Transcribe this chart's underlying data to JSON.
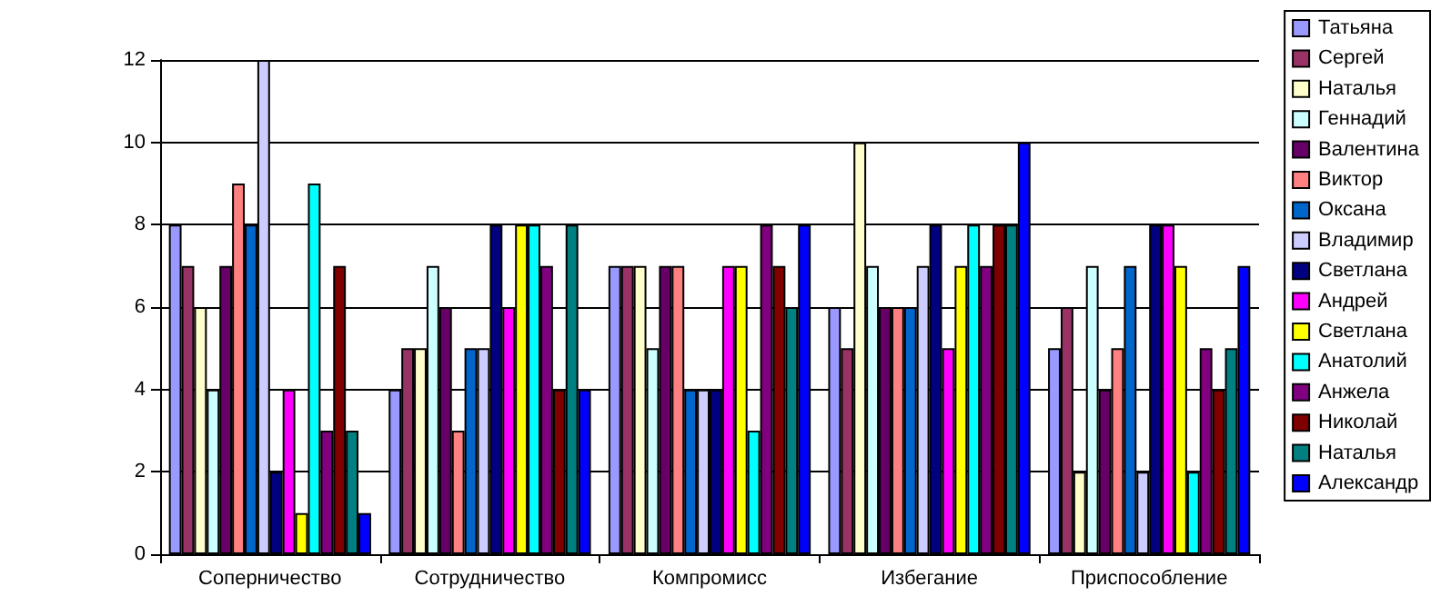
{
  "chart_data": {
    "type": "bar",
    "categories": [
      "Соперничество",
      "Сотрудничество",
      "Компромисс",
      "Избегание",
      "Приспособление"
    ],
    "series": [
      {
        "name": "Татьяна",
        "color": "#9999ff",
        "values": [
          8,
          4,
          7,
          6,
          5
        ]
      },
      {
        "name": "Сергей",
        "color": "#993366",
        "values": [
          7,
          5,
          7,
          5,
          6
        ]
      },
      {
        "name": "Наталья",
        "color": "#ffffcc",
        "values": [
          6,
          5,
          7,
          10,
          2
        ]
      },
      {
        "name": "Геннадий",
        "color": "#ccffff",
        "values": [
          4,
          7,
          5,
          7,
          7
        ]
      },
      {
        "name": "Валентина",
        "color": "#660066",
        "values": [
          7,
          6,
          7,
          6,
          4
        ]
      },
      {
        "name": "Виктор",
        "color": "#ff8080",
        "values": [
          9,
          3,
          7,
          6,
          5
        ]
      },
      {
        "name": "Оксана",
        "color": "#0066cc",
        "values": [
          8,
          5,
          4,
          6,
          7
        ]
      },
      {
        "name": "Владимир",
        "color": "#ccccff",
        "values": [
          12,
          5,
          4,
          7,
          2
        ]
      },
      {
        "name": "Светлана",
        "color": "#000080",
        "values": [
          2,
          8,
          4,
          8,
          8
        ]
      },
      {
        "name": "Андрей",
        "color": "#ff00ff",
        "values": [
          4,
          6,
          7,
          5,
          8
        ]
      },
      {
        "name": "Светлана",
        "color": "#ffff00",
        "values": [
          1,
          8,
          7,
          7,
          7
        ]
      },
      {
        "name": "Анатолий",
        "color": "#00ffff",
        "values": [
          9,
          8,
          3,
          8,
          2
        ]
      },
      {
        "name": "Анжела",
        "color": "#800080",
        "values": [
          3,
          7,
          8,
          7,
          5
        ]
      },
      {
        "name": "Николай",
        "color": "#800000",
        "values": [
          7,
          4,
          7,
          8,
          4
        ]
      },
      {
        "name": "Наталья",
        "color": "#008080",
        "values": [
          3,
          8,
          6,
          8,
          5
        ]
      },
      {
        "name": "Александр",
        "color": "#0000ff",
        "values": [
          1,
          4,
          8,
          10,
          7
        ]
      }
    ],
    "ylim": [
      0,
      12
    ],
    "yticks": [
      0,
      2,
      4,
      6,
      8,
      10,
      12
    ],
    "grid": "y",
    "legend": "right"
  }
}
